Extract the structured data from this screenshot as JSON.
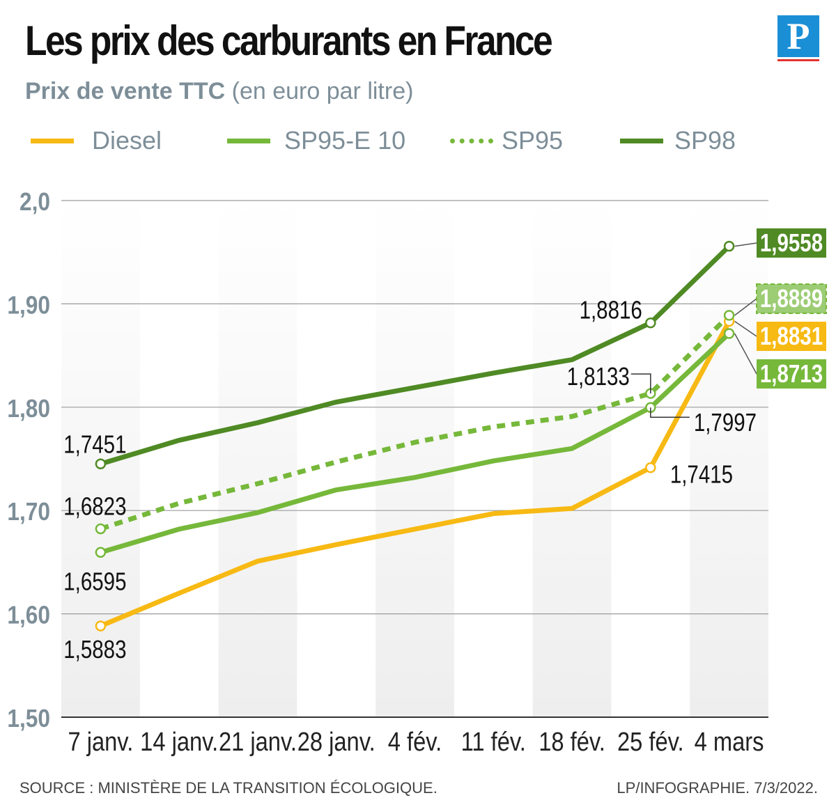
{
  "title": "Les prix des carburants en France",
  "logo_letter": "P",
  "subtitle": {
    "bold": "Prix de vente TTC",
    "light": "(en euro par litre)"
  },
  "colors": {
    "diesel": "#f7b913",
    "sp95e10": "#76b83a",
    "sp95": "#76b83a",
    "sp98": "#4f8a24",
    "axis_text": "#7d8e98",
    "band": "#eeeeee"
  },
  "legend": [
    {
      "key": "diesel",
      "label": "Diesel",
      "style": "solid",
      "color": "#f7b913"
    },
    {
      "key": "sp95e10",
      "label": "SP95-E 10",
      "style": "solid",
      "color": "#76b83a"
    },
    {
      "key": "sp95",
      "label": "SP95",
      "style": "dotted",
      "color": "#76b83a"
    },
    {
      "key": "sp98",
      "label": "SP98",
      "style": "solid",
      "color": "#4f8a24"
    }
  ],
  "chart_data": {
    "type": "line",
    "title": "Les prix des carburants en France",
    "ylabel": "Prix de vente TTC (en euro par litre)",
    "xlabel": "",
    "ylim": [
      1.5,
      2.0
    ],
    "yticks": [
      {
        "value": 2.0,
        "label": "2,0"
      },
      {
        "value": 1.9,
        "label": "1,90"
      },
      {
        "value": 1.8,
        "label": "1,80"
      },
      {
        "value": 1.7,
        "label": "1,70"
      },
      {
        "value": 1.6,
        "label": "1,60"
      },
      {
        "value": 1.5,
        "label": "1,50"
      }
    ],
    "categories": [
      "7 janv.",
      "14 janv.",
      "21 janv.",
      "28 janv.",
      "4 fév.",
      "11 fév.",
      "18 fév.",
      "25 fév.",
      "4 mars"
    ],
    "series": [
      {
        "key": "diesel",
        "name": "Diesel",
        "style": "solid",
        "color": "#f7b913",
        "values": [
          1.5883,
          1.62,
          1.651,
          1.667,
          1.682,
          1.697,
          1.702,
          1.7415,
          1.8831
        ]
      },
      {
        "key": "sp95e10",
        "name": "SP95-E 10",
        "style": "solid",
        "color": "#76b83a",
        "values": [
          1.6595,
          1.682,
          1.698,
          1.72,
          1.732,
          1.748,
          1.76,
          1.7997,
          1.8713
        ]
      },
      {
        "key": "sp95",
        "name": "SP95",
        "style": "dotted",
        "color": "#76b83a",
        "values": [
          1.6823,
          1.707,
          1.726,
          1.747,
          1.766,
          1.781,
          1.791,
          1.8133,
          1.8889
        ]
      },
      {
        "key": "sp98",
        "name": "SP98",
        "style": "solid",
        "color": "#4f8a24",
        "values": [
          1.7451,
          1.768,
          1.785,
          1.805,
          1.819,
          1.833,
          1.846,
          1.8816,
          1.9558
        ]
      }
    ],
    "data_labels": [
      {
        "series": "sp98",
        "index": 0,
        "text": "1,7451"
      },
      {
        "series": "sp95",
        "index": 0,
        "text": "1,6823"
      },
      {
        "series": "sp95e10",
        "index": 0,
        "text": "1,6595"
      },
      {
        "series": "diesel",
        "index": 0,
        "text": "1,5883"
      },
      {
        "series": "sp98",
        "index": 7,
        "text": "1,8816"
      },
      {
        "series": "sp95",
        "index": 7,
        "text": "1,8133"
      },
      {
        "series": "sp95e10",
        "index": 7,
        "text": "1,7997"
      },
      {
        "series": "diesel",
        "index": 7,
        "text": "1,7415"
      },
      {
        "series": "sp98",
        "index": 8,
        "text": "1,9558",
        "boxed": true
      },
      {
        "series": "sp95",
        "index": 8,
        "text": "1,8889",
        "boxed": true
      },
      {
        "series": "diesel",
        "index": 8,
        "text": "1,8831",
        "boxed": true
      },
      {
        "series": "sp95e10",
        "index": 8,
        "text": "1,8713",
        "boxed": true
      }
    ],
    "grid": true,
    "alternating_bands": true
  },
  "footer": {
    "source": "SOURCE : MINISTÈRE DE LA TRANSITION ÉCOLOGIQUE.",
    "credit": "LP/INFOGRAPHIE.  7/3/2022."
  }
}
